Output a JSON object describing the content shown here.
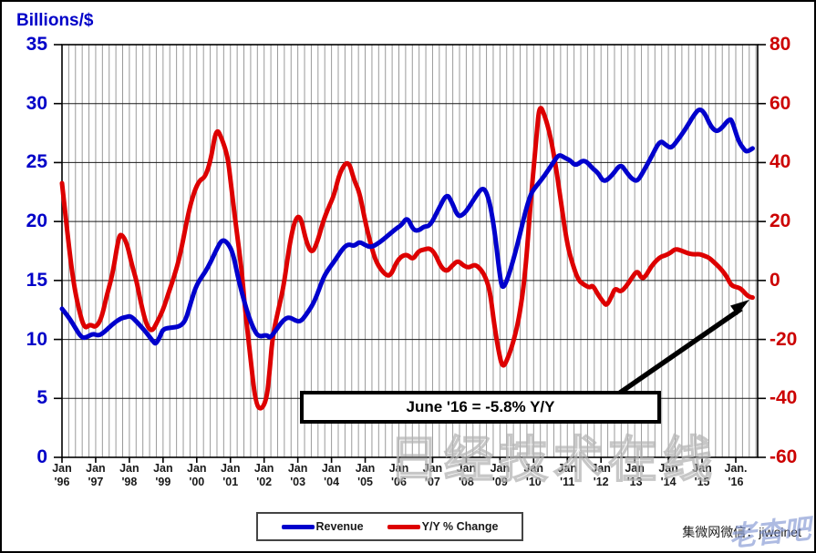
{
  "axis_titles": {
    "left": "Billions/$"
  },
  "axes": {
    "left_ticks": [
      35,
      30,
      25,
      20,
      15,
      10,
      5,
      0
    ],
    "right_ticks": [
      80,
      60,
      40,
      20,
      0,
      -20,
      -40,
      -60
    ],
    "x_ticks": [
      {
        "line1": "Jan",
        "line2": "'96"
      },
      {
        "line1": "Jan",
        "line2": "'97"
      },
      {
        "line1": "Jan",
        "line2": "'98"
      },
      {
        "line1": "Jan",
        "line2": "'99"
      },
      {
        "line1": "Jan",
        "line2": "'00"
      },
      {
        "line1": "Jan",
        "line2": "'01"
      },
      {
        "line1": "Jan",
        "line2": "'02"
      },
      {
        "line1": "Jan",
        "line2": "'03"
      },
      {
        "line1": "Jan",
        "line2": "'04"
      },
      {
        "line1": "Jan",
        "line2": "'05"
      },
      {
        "line1": "Jan",
        "line2": "'06"
      },
      {
        "line1": "Jan",
        "line2": "'07"
      },
      {
        "line1": "Jan",
        "line2": "'08"
      },
      {
        "line1": "Jan",
        "line2": "'09"
      },
      {
        "line1": "Jan",
        "line2": "'10"
      },
      {
        "line1": "Jan",
        "line2": "'11"
      },
      {
        "line1": "Jan",
        "line2": "'12"
      },
      {
        "line1": "Jan",
        "line2": "'13"
      },
      {
        "line1": "Jan",
        "line2": "'14"
      },
      {
        "line1": "Jan",
        "line2": "'15"
      },
      {
        "line1": "Jan.",
        "line2": "'16"
      }
    ]
  },
  "colors": {
    "revenue_line": "#0000CC",
    "yoy_line": "#DD0000",
    "left_axis_text": "#0000C8",
    "right_axis_text": "#CC0000",
    "grid_minor": "#9a9a9a",
    "grid_major": "#1a1a1a"
  },
  "annotation": {
    "text": "June '16 = -5.8% Y/Y"
  },
  "legend": [
    {
      "label": "Revenue",
      "color": "#0000CC"
    },
    {
      "label": "Y/Y % Change",
      "color": "#DD0000"
    }
  ],
  "watermarks": {
    "center": "日经技术在线",
    "corner_black": "集微网微信：jiweinet",
    "corner_blue": "老杳吧"
  },
  "chart_data": {
    "type": "line",
    "title": "",
    "ylabel_left": "Billions/$",
    "y_left_range": [
      0,
      35
    ],
    "y_right_range": [
      -60,
      80
    ],
    "x_range_years": [
      1996.0,
      2016.65
    ],
    "grid": "minor vertical gray (5/yr), major horizontal black every 5 left-units",
    "legend_position": "bottom-center",
    "annotation_points_to": {
      "year": 2016.5,
      "yoy_pct": -5.8
    },
    "series": [
      {
        "name": "Revenue",
        "axis": "left",
        "units": "US$ billions (monthly billings)",
        "points": [
          [
            1996.0,
            12.6
          ],
          [
            1996.17,
            12.0
          ],
          [
            1996.33,
            11.3
          ],
          [
            1996.58,
            10.1
          ],
          [
            1996.75,
            10.2
          ],
          [
            1996.92,
            10.5
          ],
          [
            1997.08,
            10.3
          ],
          [
            1997.25,
            10.6
          ],
          [
            1997.5,
            11.3
          ],
          [
            1997.75,
            11.8
          ],
          [
            1997.92,
            11.9
          ],
          [
            1998.04,
            12.0
          ],
          [
            1998.25,
            11.4
          ],
          [
            1998.5,
            10.6
          ],
          [
            1998.71,
            9.8
          ],
          [
            1998.79,
            9.6
          ],
          [
            1998.92,
            10.3
          ],
          [
            1999.0,
            10.9
          ],
          [
            1999.25,
            11.0
          ],
          [
            1999.5,
            11.1
          ],
          [
            1999.67,
            11.6
          ],
          [
            1999.83,
            13.2
          ],
          [
            2000.0,
            14.7
          ],
          [
            2000.25,
            15.7
          ],
          [
            2000.42,
            16.6
          ],
          [
            2000.58,
            17.6
          ],
          [
            2000.75,
            18.5
          ],
          [
            2000.92,
            18.2
          ],
          [
            2001.08,
            17.3
          ],
          [
            2001.25,
            14.9
          ],
          [
            2001.5,
            12.3
          ],
          [
            2001.67,
            11.0
          ],
          [
            2001.83,
            10.2
          ],
          [
            2002.08,
            10.4
          ],
          [
            2002.17,
            10.1
          ],
          [
            2002.33,
            10.7
          ],
          [
            2002.58,
            11.7
          ],
          [
            2002.75,
            11.9
          ],
          [
            2002.92,
            11.6
          ],
          [
            2003.08,
            11.5
          ],
          [
            2003.25,
            12.1
          ],
          [
            2003.5,
            13.2
          ],
          [
            2003.75,
            15.2
          ],
          [
            2003.92,
            16.0
          ],
          [
            2004.08,
            16.6
          ],
          [
            2004.33,
            17.7
          ],
          [
            2004.5,
            18.1
          ],
          [
            2004.67,
            17.9
          ],
          [
            2004.83,
            18.3
          ],
          [
            2005.0,
            18.0
          ],
          [
            2005.17,
            17.8
          ],
          [
            2005.42,
            18.2
          ],
          [
            2005.67,
            18.8
          ],
          [
            2005.92,
            19.4
          ],
          [
            2006.08,
            19.7
          ],
          [
            2006.25,
            20.4
          ],
          [
            2006.42,
            19.3
          ],
          [
            2006.58,
            19.2
          ],
          [
            2006.75,
            19.6
          ],
          [
            2006.92,
            19.6
          ],
          [
            2007.17,
            21.0
          ],
          [
            2007.42,
            22.4
          ],
          [
            2007.58,
            21.6
          ],
          [
            2007.75,
            20.4
          ],
          [
            2007.92,
            20.6
          ],
          [
            2008.08,
            21.2
          ],
          [
            2008.25,
            22.0
          ],
          [
            2008.5,
            23.0
          ],
          [
            2008.67,
            22.0
          ],
          [
            2008.83,
            19.5
          ],
          [
            2009.0,
            15.3
          ],
          [
            2009.08,
            14.2
          ],
          [
            2009.25,
            15.3
          ],
          [
            2009.5,
            17.8
          ],
          [
            2009.75,
            20.8
          ],
          [
            2009.92,
            22.4
          ],
          [
            2010.08,
            23.0
          ],
          [
            2010.33,
            23.9
          ],
          [
            2010.58,
            25.0
          ],
          [
            2010.75,
            25.7
          ],
          [
            2010.92,
            25.4
          ],
          [
            2011.08,
            25.2
          ],
          [
            2011.25,
            24.7
          ],
          [
            2011.5,
            25.3
          ],
          [
            2011.75,
            24.5
          ],
          [
            2011.92,
            24.1
          ],
          [
            2012.08,
            23.3
          ],
          [
            2012.33,
            23.9
          ],
          [
            2012.58,
            24.9
          ],
          [
            2012.75,
            24.2
          ],
          [
            2012.92,
            23.6
          ],
          [
            2013.08,
            23.4
          ],
          [
            2013.25,
            24.2
          ],
          [
            2013.5,
            25.5
          ],
          [
            2013.75,
            26.9
          ],
          [
            2013.92,
            26.5
          ],
          [
            2014.08,
            26.2
          ],
          [
            2014.25,
            26.8
          ],
          [
            2014.5,
            27.8
          ],
          [
            2014.75,
            29.0
          ],
          [
            2014.92,
            29.6
          ],
          [
            2015.08,
            29.2
          ],
          [
            2015.25,
            28.1
          ],
          [
            2015.42,
            27.6
          ],
          [
            2015.58,
            27.9
          ],
          [
            2015.83,
            28.8
          ],
          [
            2015.92,
            28.3
          ],
          [
            2016.08,
            26.8
          ],
          [
            2016.25,
            26.1
          ],
          [
            2016.33,
            25.9
          ],
          [
            2016.5,
            26.2
          ]
        ]
      },
      {
        "name": "Y/Y % Change",
        "axis": "right",
        "units": "percent",
        "points": [
          [
            1996.0,
            33
          ],
          [
            1996.17,
            15
          ],
          [
            1996.33,
            0
          ],
          [
            1996.5,
            -10
          ],
          [
            1996.67,
            -16.5
          ],
          [
            1996.83,
            -14.8
          ],
          [
            1997.0,
            -16
          ],
          [
            1997.17,
            -13
          ],
          [
            1997.33,
            -5
          ],
          [
            1997.5,
            2
          ],
          [
            1997.67,
            14
          ],
          [
            1997.75,
            16
          ],
          [
            1997.92,
            13
          ],
          [
            1998.08,
            5
          ],
          [
            1998.21,
            0
          ],
          [
            1998.33,
            -7
          ],
          [
            1998.5,
            -15
          ],
          [
            1998.67,
            -17.5
          ],
          [
            1998.83,
            -14
          ],
          [
            1999.0,
            -10
          ],
          [
            1999.17,
            -4
          ],
          [
            1999.29,
            0
          ],
          [
            1999.5,
            8
          ],
          [
            1999.75,
            23
          ],
          [
            1999.92,
            30
          ],
          [
            2000.08,
            34
          ],
          [
            2000.25,
            35
          ],
          [
            2000.42,
            41
          ],
          [
            2000.58,
            52
          ],
          [
            2000.75,
            48
          ],
          [
            2000.92,
            42
          ],
          [
            2001.0,
            34
          ],
          [
            2001.17,
            18
          ],
          [
            2001.33,
            4
          ],
          [
            2001.42,
            -8
          ],
          [
            2001.58,
            -25
          ],
          [
            2001.75,
            -42
          ],
          [
            2001.92,
            -44
          ],
          [
            2002.08,
            -40
          ],
          [
            2002.17,
            -30
          ],
          [
            2002.25,
            -19
          ],
          [
            2002.42,
            -10
          ],
          [
            2002.58,
            -2
          ],
          [
            2002.75,
            12
          ],
          [
            2002.92,
            21
          ],
          [
            2003.08,
            22
          ],
          [
            2003.25,
            13
          ],
          [
            2003.42,
            9
          ],
          [
            2003.58,
            13
          ],
          [
            2003.75,
            20
          ],
          [
            2003.92,
            25
          ],
          [
            2004.08,
            29
          ],
          [
            2004.25,
            37
          ],
          [
            2004.5,
            41
          ],
          [
            2004.67,
            34
          ],
          [
            2004.83,
            30
          ],
          [
            2005.0,
            20
          ],
          [
            2005.17,
            12
          ],
          [
            2005.33,
            6
          ],
          [
            2005.58,
            2
          ],
          [
            2005.75,
            1.5
          ],
          [
            2005.92,
            6
          ],
          [
            2006.08,
            8.3
          ],
          [
            2006.25,
            8.8
          ],
          [
            2006.42,
            7
          ],
          [
            2006.58,
            10
          ],
          [
            2006.75,
            10.5
          ],
          [
            2006.92,
            11
          ],
          [
            2007.08,
            9
          ],
          [
            2007.25,
            4.5
          ],
          [
            2007.42,
            3
          ],
          [
            2007.58,
            5
          ],
          [
            2007.75,
            6.8
          ],
          [
            2007.92,
            5
          ],
          [
            2008.08,
            4.3
          ],
          [
            2008.25,
            5.5
          ],
          [
            2008.42,
            4
          ],
          [
            2008.58,
            1
          ],
          [
            2008.71,
            -4
          ],
          [
            2008.83,
            -15
          ],
          [
            2008.96,
            -24
          ],
          [
            2009.08,
            -30
          ],
          [
            2009.25,
            -26
          ],
          [
            2009.42,
            -20
          ],
          [
            2009.58,
            -12
          ],
          [
            2009.75,
            2
          ],
          [
            2009.92,
            28
          ],
          [
            2010.08,
            48
          ],
          [
            2010.17,
            60
          ],
          [
            2010.33,
            56
          ],
          [
            2010.5,
            49
          ],
          [
            2010.67,
            38
          ],
          [
            2010.83,
            25
          ],
          [
            2011.0,
            12
          ],
          [
            2011.17,
            5
          ],
          [
            2011.33,
            0
          ],
          [
            2011.5,
            -1.5
          ],
          [
            2011.67,
            -2.5
          ],
          [
            2011.75,
            -1.5
          ],
          [
            2011.92,
            -5
          ],
          [
            2012.08,
            -7.5
          ],
          [
            2012.17,
            -8.6
          ],
          [
            2012.33,
            -5
          ],
          [
            2012.42,
            -2.5
          ],
          [
            2012.58,
            -4
          ],
          [
            2012.75,
            -2
          ],
          [
            2012.92,
            1
          ],
          [
            2013.08,
            3.5
          ],
          [
            2013.21,
            0.5
          ],
          [
            2013.33,
            1.5
          ],
          [
            2013.5,
            5
          ],
          [
            2013.75,
            8
          ],
          [
            2013.92,
            8.5
          ],
          [
            2014.08,
            9.5
          ],
          [
            2014.21,
            10.8
          ],
          [
            2014.42,
            10
          ],
          [
            2014.58,
            9.2
          ],
          [
            2014.75,
            8.8
          ],
          [
            2014.92,
            9
          ],
          [
            2015.08,
            8.3
          ],
          [
            2015.21,
            7.7
          ],
          [
            2015.42,
            5.5
          ],
          [
            2015.58,
            3.7
          ],
          [
            2015.75,
            1
          ],
          [
            2015.83,
            -1
          ],
          [
            2015.92,
            -2
          ],
          [
            2016.08,
            -2.4
          ],
          [
            2016.17,
            -3
          ],
          [
            2016.33,
            -5
          ],
          [
            2016.42,
            -5.6
          ],
          [
            2016.5,
            -5.8
          ]
        ]
      }
    ]
  }
}
